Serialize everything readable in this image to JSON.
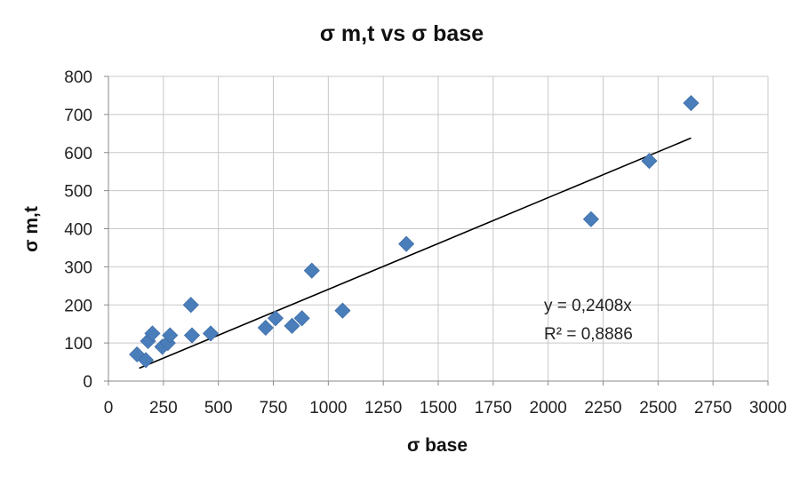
{
  "chart_data": {
    "type": "scatter",
    "title": "σ m,t vs σ base",
    "xlabel": "σ base",
    "ylabel": "σ m,t",
    "xlim": [
      0,
      3000
    ],
    "ylim": [
      0,
      800
    ],
    "x_ticks": [
      0,
      250,
      500,
      750,
      1000,
      1250,
      1500,
      1750,
      2000,
      2250,
      2500,
      2750,
      3000
    ],
    "y_ticks": [
      0,
      100,
      200,
      300,
      400,
      500,
      600,
      700,
      800
    ],
    "grid": "on (vertical and horizontal)",
    "marker": "diamond",
    "marker_color": "#4a7ebb",
    "series": [
      {
        "points": [
          [
            130,
            70
          ],
          [
            170,
            55
          ],
          [
            180,
            105
          ],
          [
            200,
            125
          ],
          [
            245,
            90
          ],
          [
            270,
            100
          ],
          [
            280,
            120
          ],
          [
            375,
            200
          ],
          [
            380,
            120
          ],
          [
            465,
            125
          ],
          [
            715,
            140
          ],
          [
            760,
            165
          ],
          [
            835,
            145
          ],
          [
            880,
            165
          ],
          [
            925,
            290
          ],
          [
            1065,
            185
          ],
          [
            1355,
            360
          ],
          [
            2195,
            425
          ],
          [
            2460,
            578
          ],
          [
            2650,
            730
          ]
        ]
      }
    ],
    "trendline": {
      "slope": 0.2408,
      "x_range": [
        140,
        2650
      ],
      "color": "#000000",
      "equation_label": "y = 0,2408x",
      "r2_label": "R² = 0,8886"
    }
  }
}
